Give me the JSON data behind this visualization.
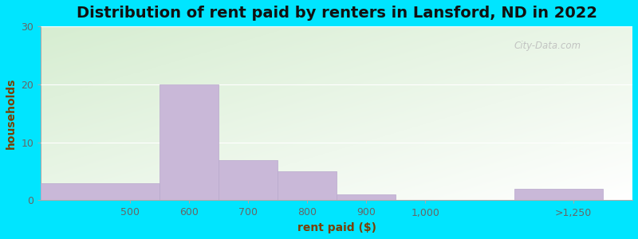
{
  "title": "Distribution of rent paid by renters in Lansford, ND in 2022",
  "xlabel": "rent paid ($)",
  "ylabel": "households",
  "bar_values": [
    3,
    20,
    7,
    5,
    1,
    0,
    2
  ],
  "bar_left_edges": [
    350,
    550,
    650,
    750,
    850,
    950,
    1150
  ],
  "bar_widths": [
    200,
    100,
    100,
    100,
    100,
    100,
    150
  ],
  "xtick_positions": [
    500,
    600,
    700,
    800,
    900,
    1000,
    1250
  ],
  "xtick_labels": [
    "500",
    "600",
    "700",
    "800",
    "900",
    "1,000",
    ">1,250"
  ],
  "bar_color": "#c9b8d8",
  "bar_edge_color": "#b8a8cc",
  "ylim": [
    0,
    30
  ],
  "xlim": [
    350,
    1350
  ],
  "yticks": [
    0,
    10,
    20,
    30
  ],
  "title_fontsize": 14,
  "axis_label_fontsize": 10,
  "tick_fontsize": 9,
  "watermark_text": "City-Data.com",
  "bg_color_topleft": [
    0.84,
    0.93,
    0.82
  ],
  "bg_color_white": [
    1.0,
    1.0,
    1.0
  ],
  "outer_bg": "#00e5ff"
}
